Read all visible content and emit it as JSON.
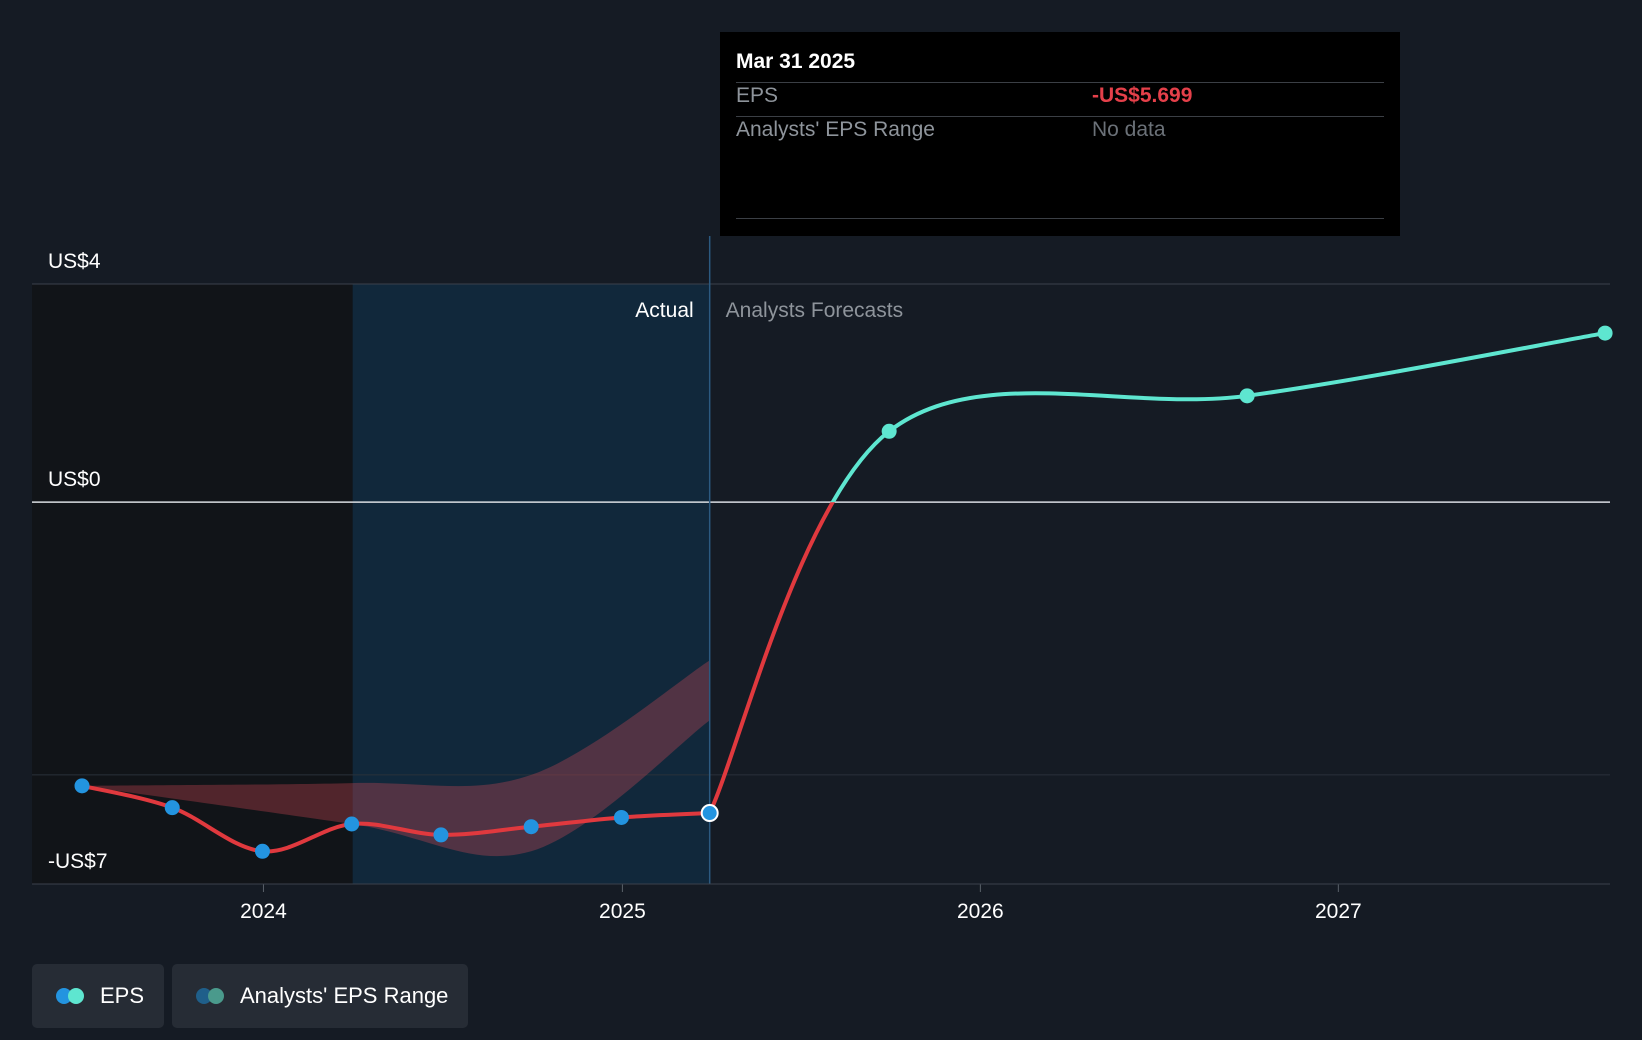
{
  "colors": {
    "background": "#151b24",
    "actual_line": "#e0393e",
    "forecast_line": "#5ee6d0",
    "point_actual": "#2394e0",
    "point_forecast": "#5ee6d0",
    "range_fill": "#d94a56",
    "actual_band": "#112a40",
    "past_band": "#111418",
    "negative_text": "#e5404a",
    "muted_text": "#6b7178"
  },
  "tooltip": {
    "date": "Mar 31 2025",
    "rows": [
      {
        "label": "EPS",
        "value": "-US$5.699"
      },
      {
        "label": "Analysts' EPS Range",
        "value": "No data"
      }
    ]
  },
  "legend": {
    "items": [
      {
        "label": "EPS",
        "icon": "eps-legend-icon"
      },
      {
        "label": "Analysts' EPS Range",
        "icon": "range-legend-icon"
      }
    ]
  },
  "chart_data": {
    "type": "line",
    "y_tick_labels": [
      {
        "label": "US$4",
        "value": 4
      },
      {
        "label": "US$0",
        "value": 0
      },
      {
        "label": "-US$7",
        "value": -7
      }
    ],
    "ylim": [
      -7,
      4
    ],
    "x_tick_labels": [
      "2024",
      "2025",
      "2026",
      "2027"
    ],
    "xlim": [
      "2023-05-10",
      "2027-10-05"
    ],
    "region_labels": {
      "actual": "Actual",
      "forecast": "Analysts Forecasts"
    },
    "divider_date": "2025-03-31",
    "actual_band_start": "2024-04-01",
    "series": [
      {
        "name": "EPS",
        "kind": "actual",
        "points": [
          {
            "x": "2023-06-30",
            "y": -5.2
          },
          {
            "x": "2023-09-30",
            "y": -5.6
          },
          {
            "x": "2023-12-31",
            "y": -6.4
          },
          {
            "x": "2024-03-31",
            "y": -5.9
          },
          {
            "x": "2024-06-30",
            "y": -6.1
          },
          {
            "x": "2024-09-30",
            "y": -5.95
          },
          {
            "x": "2024-12-31",
            "y": -5.78
          },
          {
            "x": "2025-03-31",
            "y": -5.699
          }
        ]
      },
      {
        "name": "EPS",
        "kind": "forecast",
        "points": [
          {
            "x": "2025-03-31",
            "y": -5.699
          },
          {
            "x": "2025-09-30",
            "y": 1.3
          },
          {
            "x": "2026-09-30",
            "y": 1.95
          },
          {
            "x": "2027-09-30",
            "y": 3.1
          }
        ]
      }
    ],
    "range": {
      "name": "Analysts' EPS Range",
      "upper": [
        {
          "x": "2023-06-30",
          "y": -5.2
        },
        {
          "x": "2024-03-31",
          "y": -5.15
        },
        {
          "x": "2024-09-30",
          "y": -5.0
        },
        {
          "x": "2025-03-31",
          "y": -2.9
        }
      ],
      "lower": [
        {
          "x": "2023-06-30",
          "y": -5.2
        },
        {
          "x": "2024-03-31",
          "y": -5.9
        },
        {
          "x": "2024-09-30",
          "y": -6.4
        },
        {
          "x": "2025-03-31",
          "y": -4.0
        }
      ]
    }
  }
}
